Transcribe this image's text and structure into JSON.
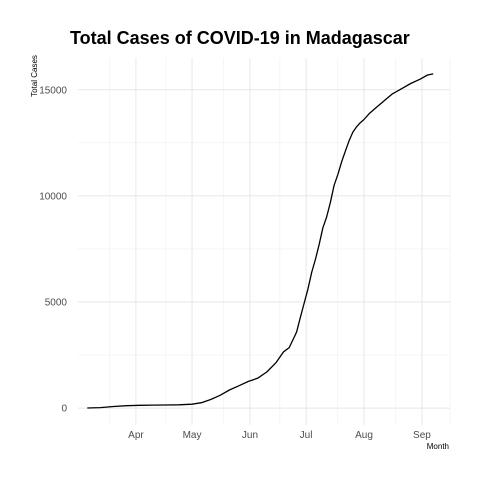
{
  "chart_data": {
    "type": "line",
    "title": "Total Cases of COVID-19 in Madagascar",
    "xlabel": "Month",
    "ylabel": "Total Cases",
    "x_tick_labels": [
      "Apr",
      "May",
      "Jun",
      "Jul",
      "Aug",
      "Sep"
    ],
    "y_ticks": [
      0,
      5000,
      10000,
      15000
    ],
    "y_tick_labels": [
      "0",
      "5000",
      "10000",
      "15000"
    ],
    "xlim": [
      "2020-03-15",
      "2020-09-30"
    ],
    "ylim": [
      -800,
      16500
    ],
    "grid": true,
    "legend": "none",
    "series": [
      {
        "color": "#000000",
        "x": [
          "2020-03-20",
          "2020-03-27",
          "2020-04-03",
          "2020-04-10",
          "2020-04-17",
          "2020-04-24",
          "2020-05-01",
          "2020-05-08",
          "2020-05-15",
          "2020-05-20",
          "2020-05-25",
          "2020-05-30",
          "2020-06-04",
          "2020-06-09",
          "2020-06-14",
          "2020-06-19",
          "2020-06-24",
          "2020-06-29",
          "2020-07-03",
          "2020-07-06",
          "2020-07-09",
          "2020-07-10",
          "2020-07-12",
          "2020-07-14",
          "2020-07-16",
          "2020-07-18",
          "2020-07-20",
          "2020-07-22",
          "2020-07-24",
          "2020-07-26",
          "2020-07-28",
          "2020-07-30",
          "2020-08-01",
          "2020-08-03",
          "2020-08-05",
          "2020-08-07",
          "2020-08-09",
          "2020-08-11",
          "2020-08-13",
          "2020-08-15",
          "2020-08-18",
          "2020-08-22",
          "2020-08-26",
          "2020-08-30",
          "2020-09-04",
          "2020-09-09",
          "2020-09-14",
          "2020-09-18",
          "2020-09-21"
        ],
        "values": [
          0,
          20,
          70,
          110,
          130,
          140,
          145,
          150,
          180,
          250,
          400,
          600,
          850,
          1050,
          1250,
          1400,
          1700,
          2150,
          2650,
          2850,
          3400,
          3600,
          4300,
          4950,
          5600,
          6400,
          7000,
          7700,
          8500,
          9000,
          9700,
          10500,
          11000,
          11600,
          12100,
          12600,
          13000,
          13250,
          13450,
          13600,
          13900,
          14200,
          14500,
          14800,
          15050,
          15300,
          15500,
          15700,
          15750
        ]
      }
    ]
  }
}
